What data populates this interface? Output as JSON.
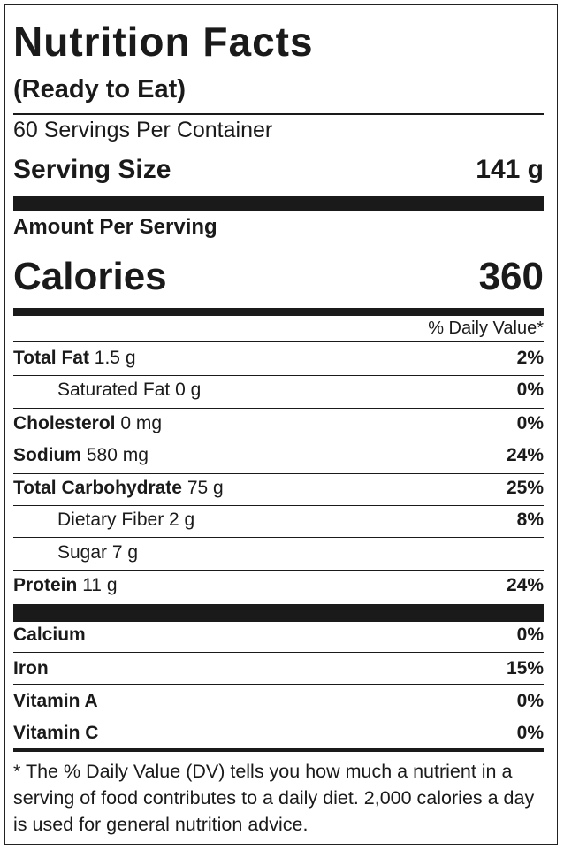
{
  "header": {
    "title": "Nutrition Facts",
    "subtitle": "(Ready to Eat)",
    "servings": "60 Servings Per Container",
    "serving_size_label": "Serving Size",
    "serving_size_value": "141 g",
    "amount_per_serving": "Amount Per Serving",
    "calories_label": "Calories",
    "calories_value": "360",
    "daily_value_header": "% Daily Value*"
  },
  "nutrients": [
    {
      "name": "Total Fat",
      "amount": "1.5 g",
      "dv": "2%"
    },
    {
      "name": "Saturated Fat",
      "amount": "0 g",
      "dv": "0%"
    },
    {
      "name": "Cholesterol",
      "amount": "0 mg",
      "dv": "0%"
    },
    {
      "name": "Sodium",
      "amount": "580 mg",
      "dv": "24%"
    },
    {
      "name": "Total Carbohydrate",
      "amount": "75 g",
      "dv": "25%"
    },
    {
      "name": "Dietary Fiber",
      "amount": "2 g",
      "dv": "8%"
    },
    {
      "name": "Sugar",
      "amount": "7 g"
    },
    {
      "name": "Protein",
      "amount": "11 g",
      "dv": "24%"
    }
  ],
  "vitamins": [
    {
      "name": "Calcium",
      "dv": "0%"
    },
    {
      "name": "Iron",
      "dv": "15%"
    },
    {
      "name": "Vitamin A",
      "dv": "0%"
    },
    {
      "name": "Vitamin C",
      "dv": "0%"
    }
  ],
  "footnote": "* The % Daily Value (DV) tells you how much a nutrient in a serving of food contributes to a daily diet. 2,000 calories a day is used for general nutrition advice."
}
